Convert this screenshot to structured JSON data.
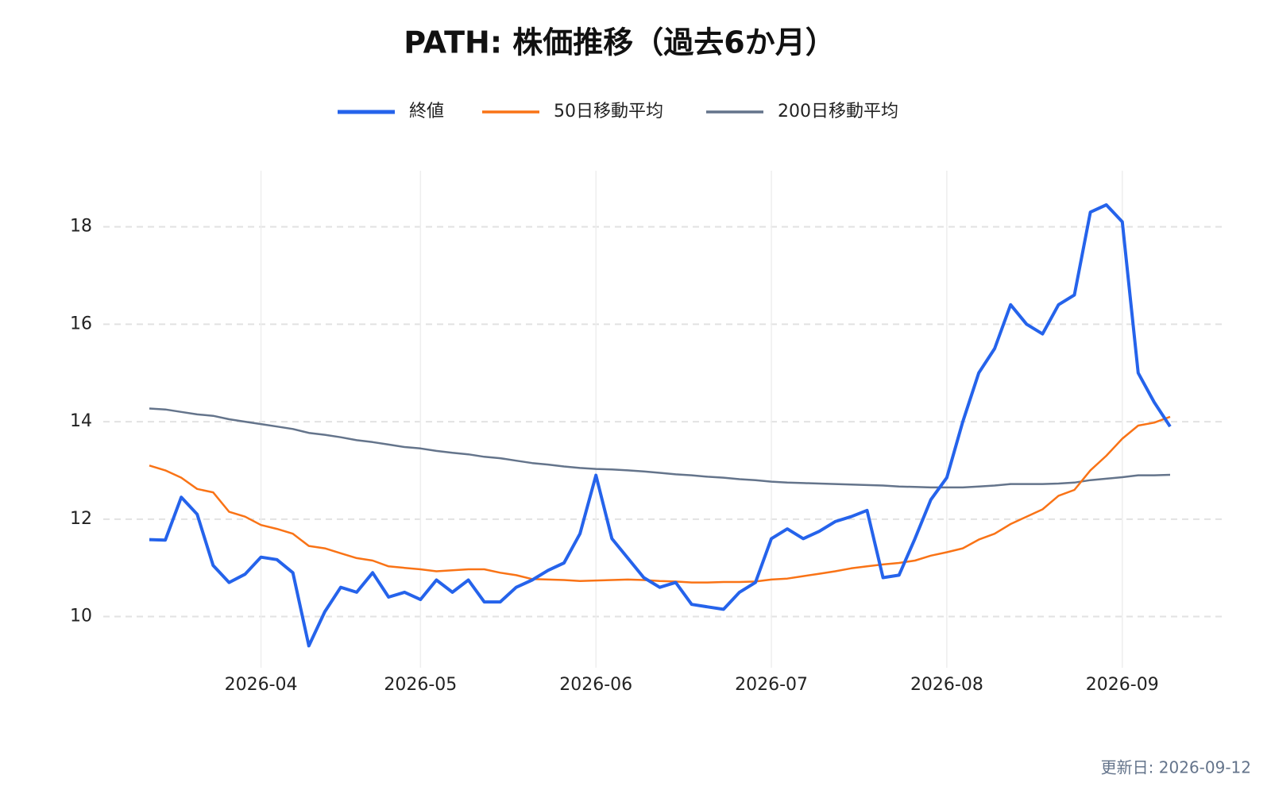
{
  "chart_data": {
    "type": "line",
    "title": "PATH: 株価推移（過去6か月）",
    "footer": "更新日: 2026-09-12",
    "categories": [
      null,
      null,
      null,
      null,
      null,
      null,
      null,
      "2026-04",
      null,
      null,
      null,
      null,
      null,
      null,
      null,
      null,
      null,
      "2026-05",
      null,
      null,
      null,
      null,
      null,
      null,
      null,
      null,
      null,
      null,
      "2026-06",
      null,
      null,
      null,
      null,
      null,
      null,
      null,
      null,
      null,
      null,
      "2026-07",
      null,
      null,
      null,
      null,
      null,
      null,
      null,
      null,
      null,
      null,
      "2026-08",
      null,
      null,
      null,
      null,
      null,
      null,
      null,
      null,
      null,
      null,
      "2026-09",
      null,
      null,
      null
    ],
    "series": [
      {
        "name": "終値",
        "color": "#2563eb",
        "width": 4,
        "values": [
          11.58,
          11.57,
          12.45,
          12.1,
          11.05,
          10.7,
          10.87,
          11.22,
          11.17,
          10.9,
          9.4,
          10.1,
          10.6,
          10.5,
          10.9,
          10.4,
          10.5,
          10.35,
          10.75,
          10.5,
          10.75,
          10.3,
          10.3,
          10.6,
          10.75,
          10.95,
          11.1,
          11.7,
          12.9,
          11.6,
          11.2,
          10.8,
          10.6,
          10.7,
          10.25,
          10.2,
          10.15,
          10.5,
          10.7,
          11.6,
          11.8,
          11.6,
          11.75,
          11.95,
          12.05,
          12.18,
          10.8,
          10.85,
          11.6,
          12.4,
          12.85,
          14.0,
          15.0,
          15.5,
          16.4,
          16.0,
          15.8,
          16.4,
          16.6,
          18.3,
          18.45,
          18.1,
          15.0,
          14.4,
          13.9
        ]
      },
      {
        "name": "50日移動平均",
        "color": "#f97316",
        "width": 2.5,
        "values": [
          13.1,
          13.0,
          12.85,
          12.62,
          12.55,
          12.15,
          12.05,
          11.88,
          11.8,
          11.7,
          11.45,
          11.4,
          11.3,
          11.2,
          11.15,
          11.03,
          11.0,
          10.97,
          10.93,
          10.95,
          10.97,
          10.97,
          10.9,
          10.85,
          10.77,
          10.76,
          10.75,
          10.73,
          10.74,
          10.75,
          10.76,
          10.75,
          10.73,
          10.72,
          10.7,
          10.7,
          10.71,
          10.71,
          10.72,
          10.76,
          10.78,
          10.83,
          10.88,
          10.93,
          10.99,
          11.03,
          11.07,
          11.1,
          11.15,
          11.25,
          11.32,
          11.4,
          11.58,
          11.7,
          11.9,
          12.05,
          12.2,
          12.48,
          12.6,
          13.0,
          13.3,
          13.65,
          13.92,
          13.98,
          14.1
        ]
      },
      {
        "name": "200日移動平均",
        "color": "#64748b",
        "width": 2.5,
        "values": [
          14.27,
          14.25,
          14.2,
          14.15,
          14.12,
          14.05,
          14.0,
          13.95,
          13.9,
          13.85,
          13.77,
          13.73,
          13.68,
          13.62,
          13.58,
          13.53,
          13.48,
          13.45,
          13.4,
          13.36,
          13.33,
          13.28,
          13.25,
          13.2,
          13.15,
          13.12,
          13.08,
          13.05,
          13.03,
          13.02,
          13.0,
          12.98,
          12.95,
          12.92,
          12.9,
          12.87,
          12.85,
          12.82,
          12.8,
          12.77,
          12.75,
          12.74,
          12.73,
          12.72,
          12.71,
          12.7,
          12.69,
          12.67,
          12.66,
          12.65,
          12.65,
          12.65,
          12.67,
          12.69,
          12.72,
          12.72,
          12.72,
          12.73,
          12.75,
          12.8,
          12.83,
          12.86,
          12.9,
          12.9,
          12.91
        ]
      }
    ],
    "ylim": [
      8.95,
      19.15
    ],
    "yticks": [
      10,
      12,
      14,
      16,
      18
    ],
    "grid": true,
    "legend": "top"
  }
}
